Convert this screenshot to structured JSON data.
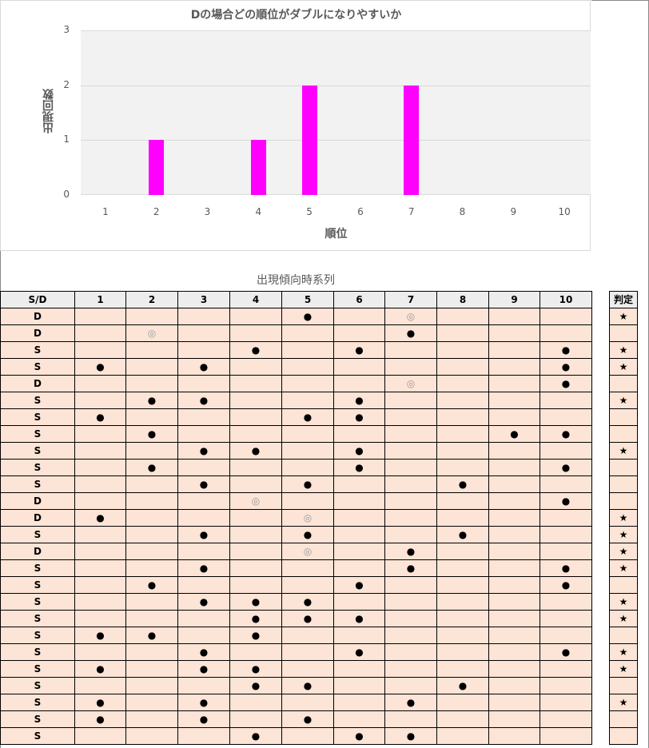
{
  "chart_data": {
    "type": "bar",
    "title": "Dの場合どの順位がダブルになりやすいか",
    "xlabel": "順位",
    "ylabel": "出現回数",
    "categories": [
      "1",
      "2",
      "3",
      "4",
      "5",
      "6",
      "7",
      "8",
      "9",
      "10"
    ],
    "values": [
      0,
      1,
      0,
      1,
      2,
      0,
      2,
      0,
      0,
      0
    ],
    "ylim": [
      0,
      3
    ],
    "yticks": [
      "0",
      "1",
      "2",
      "3"
    ],
    "grid": true,
    "bar_color": "#ff00ff"
  },
  "table": {
    "title": "出現傾向時系列",
    "headers": [
      "S/D",
      "1",
      "2",
      "3",
      "4",
      "5",
      "6",
      "7",
      "8",
      "9",
      "10"
    ],
    "judge_header": "判定",
    "rows": [
      {
        "sd": "D",
        "marks": [
          "",
          "",
          "",
          "",
          "●",
          "",
          "◎",
          "",
          "",
          ""
        ],
        "judge": "★"
      },
      {
        "sd": "D",
        "marks": [
          "",
          "◎",
          "",
          "",
          "",
          "",
          "●",
          "",
          "",
          ""
        ],
        "judge": ""
      },
      {
        "sd": "S",
        "marks": [
          "",
          "",
          "",
          "●",
          "",
          "●",
          "",
          "",
          "",
          "●"
        ],
        "judge": "★"
      },
      {
        "sd": "S",
        "marks": [
          "●",
          "",
          "●",
          "",
          "",
          "",
          "",
          "",
          "",
          "●"
        ],
        "judge": "★"
      },
      {
        "sd": "D",
        "marks": [
          "",
          "",
          "",
          "",
          "",
          "",
          "◎",
          "",
          "",
          "●"
        ],
        "judge": ""
      },
      {
        "sd": "S",
        "marks": [
          "",
          "●",
          "●",
          "",
          "",
          "●",
          "",
          "",
          "",
          ""
        ],
        "judge": "★"
      },
      {
        "sd": "S",
        "marks": [
          "●",
          "",
          "",
          "",
          "●",
          "●",
          "",
          "",
          "",
          ""
        ],
        "judge": ""
      },
      {
        "sd": "S",
        "marks": [
          "",
          "●",
          "",
          "",
          "",
          "",
          "",
          "",
          "●",
          "●"
        ],
        "judge": ""
      },
      {
        "sd": "S",
        "marks": [
          "",
          "",
          "●",
          "●",
          "",
          "●",
          "",
          "",
          "",
          ""
        ],
        "judge": "★"
      },
      {
        "sd": "S",
        "marks": [
          "",
          "●",
          "",
          "",
          "",
          "●",
          "",
          "",
          "",
          "●"
        ],
        "judge": ""
      },
      {
        "sd": "S",
        "marks": [
          "",
          "",
          "●",
          "",
          "●",
          "",
          "",
          "●",
          "",
          ""
        ],
        "judge": ""
      },
      {
        "sd": "D",
        "marks": [
          "",
          "",
          "",
          "◎",
          "",
          "",
          "",
          "",
          "",
          "●"
        ],
        "judge": ""
      },
      {
        "sd": "D",
        "marks": [
          "●",
          "",
          "",
          "",
          "◎",
          "",
          "",
          "",
          "",
          ""
        ],
        "judge": "★"
      },
      {
        "sd": "S",
        "marks": [
          "",
          "",
          "●",
          "",
          "●",
          "",
          "",
          "●",
          "",
          ""
        ],
        "judge": "★"
      },
      {
        "sd": "D",
        "marks": [
          "",
          "",
          "",
          "",
          "◎",
          "",
          "●",
          "",
          "",
          ""
        ],
        "judge": "★"
      },
      {
        "sd": "S",
        "marks": [
          "",
          "",
          "●",
          "",
          "",
          "",
          "●",
          "",
          "",
          "●"
        ],
        "judge": "★"
      },
      {
        "sd": "S",
        "marks": [
          "",
          "●",
          "",
          "",
          "",
          "●",
          "",
          "",
          "",
          "●"
        ],
        "judge": ""
      },
      {
        "sd": "S",
        "marks": [
          "",
          "",
          "●",
          "●",
          "●",
          "",
          "",
          "",
          "",
          ""
        ],
        "judge": "★"
      },
      {
        "sd": "S",
        "marks": [
          "",
          "",
          "",
          "●",
          "●",
          "●",
          "",
          "",
          "",
          ""
        ],
        "judge": "★"
      },
      {
        "sd": "S",
        "marks": [
          "●",
          "●",
          "",
          "●",
          "",
          "",
          "",
          "",
          "",
          ""
        ],
        "judge": ""
      },
      {
        "sd": "S",
        "marks": [
          "",
          "",
          "●",
          "",
          "",
          "●",
          "",
          "",
          "",
          "●"
        ],
        "judge": "★"
      },
      {
        "sd": "S",
        "marks": [
          "●",
          "",
          "●",
          "●",
          "",
          "",
          "",
          "",
          "",
          ""
        ],
        "judge": "★"
      },
      {
        "sd": "S",
        "marks": [
          "",
          "",
          "",
          "●",
          "●",
          "",
          "",
          "●",
          "",
          ""
        ],
        "judge": ""
      },
      {
        "sd": "S",
        "marks": [
          "●",
          "",
          "●",
          "",
          "",
          "",
          "●",
          "",
          "",
          ""
        ],
        "judge": "★"
      },
      {
        "sd": "S",
        "marks": [
          "●",
          "",
          "●",
          "",
          "●",
          "",
          "",
          "",
          "",
          ""
        ],
        "judge": ""
      },
      {
        "sd": "S",
        "marks": [
          "",
          "",
          "",
          "●",
          "",
          "●",
          "●",
          "",
          "",
          ""
        ],
        "judge": ""
      }
    ]
  }
}
